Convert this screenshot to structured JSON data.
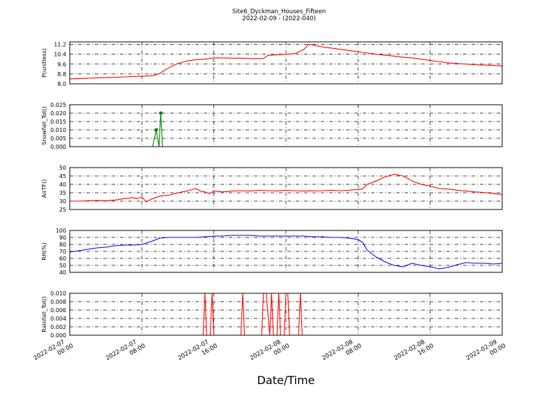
{
  "title_line1": "Site6_Dyckman_Houses_Fifteen",
  "title_line2": "2022-02-09 - (2022-040)",
  "xlabel": "Date/Time",
  "x_ticks": [
    {
      "t": 0,
      "line1": "2022-02-07",
      "line2": "00:00"
    },
    {
      "t": 8,
      "line1": "2022-02-07",
      "line2": "08:00"
    },
    {
      "t": 16,
      "line1": "2022-02-07",
      "line2": "16:00"
    },
    {
      "t": 24,
      "line1": "2022-02-08",
      "line2": "00:00"
    },
    {
      "t": 32,
      "line1": "2022-02-08",
      "line2": "08:00"
    },
    {
      "t": 40,
      "line1": "2022-02-08",
      "line2": "16:00"
    },
    {
      "t": 48,
      "line1": "2022-02-09",
      "line2": "00:00"
    }
  ],
  "chart_data": [
    {
      "type": "line",
      "ylabel": "P(unitless)",
      "ylim": [
        8.0,
        11.4
      ],
      "yticks": [
        "8.0",
        "8.8",
        "9.6",
        "10.4",
        "11.2"
      ],
      "ytick_values": [
        8.0,
        8.8,
        9.6,
        10.4,
        11.2
      ],
      "grid": true,
      "series": [
        {
          "color": "#ff0000",
          "marker": false,
          "x": [
            0,
            1,
            2,
            3,
            4,
            5,
            6,
            7,
            8,
            9,
            9.5,
            10,
            11,
            12,
            13,
            14,
            15,
            16,
            17,
            18,
            19,
            20,
            21,
            21.5,
            22,
            23,
            24,
            25,
            26,
            26.5,
            27,
            28,
            29,
            30,
            31,
            32,
            33,
            34,
            35,
            36,
            37,
            38,
            39,
            40,
            41,
            42,
            43,
            44,
            45,
            46,
            47,
            48
          ],
          "y": [
            8.4,
            8.42,
            8.45,
            8.48,
            8.5,
            8.53,
            8.56,
            8.6,
            8.62,
            8.65,
            8.7,
            8.85,
            9.3,
            9.65,
            9.85,
            9.95,
            10.0,
            10.1,
            10.1,
            10.08,
            10.08,
            10.05,
            10.05,
            10.05,
            10.3,
            10.35,
            10.4,
            10.45,
            10.8,
            11.2,
            11.15,
            11.0,
            10.9,
            10.8,
            10.7,
            10.6,
            10.5,
            10.4,
            10.32,
            10.25,
            10.15,
            10.1,
            10.0,
            9.9,
            9.8,
            9.7,
            9.65,
            9.6,
            9.55,
            9.52,
            9.5,
            9.45
          ]
        }
      ]
    },
    {
      "type": "line",
      "ylabel": "Snowfall_Tot()",
      "ylim": [
        0.0,
        0.025
      ],
      "yticks": [
        "0.000",
        "0.005",
        "0.010",
        "0.015",
        "0.020",
        "0.025"
      ],
      "ytick_values": [
        0.0,
        0.005,
        0.01,
        0.015,
        0.02,
        0.025
      ],
      "grid": true,
      "series": [
        {
          "color": "#008000",
          "marker": true,
          "x": [
            0,
            9.2,
            9.6,
            9.9,
            10.1,
            10.3,
            48
          ],
          "y": [
            0,
            0,
            0.01,
            0,
            0.02,
            0,
            0
          ]
        }
      ]
    },
    {
      "type": "line",
      "ylabel": "AirTF()",
      "ylim": [
        25,
        50
      ],
      "yticks": [
        "25",
        "30",
        "35",
        "40",
        "45",
        "50"
      ],
      "ytick_values": [
        25,
        30,
        35,
        40,
        45,
        50
      ],
      "grid": true,
      "series": [
        {
          "color": "#ff0000",
          "marker": false,
          "x": [
            0,
            1,
            2,
            3,
            4,
            5,
            6,
            7,
            7.5,
            8,
            8.5,
            9,
            10,
            11,
            12,
            13,
            14,
            14.5,
            15,
            15.5,
            16,
            17,
            18,
            19,
            20,
            21,
            22,
            23,
            24,
            25,
            26,
            27,
            28,
            29,
            30,
            31,
            32,
            32.5,
            33,
            34,
            35,
            36,
            37,
            38,
            39,
            40,
            41,
            42,
            43,
            44,
            45,
            46,
            47,
            48
          ],
          "y": [
            30,
            30,
            30.2,
            30.4,
            30.2,
            30.6,
            31.5,
            32,
            31.5,
            32.5,
            29.5,
            31,
            33,
            33.5,
            35,
            36,
            37.5,
            36,
            35.5,
            34.5,
            36,
            35.5,
            36,
            36.2,
            36,
            36.5,
            36.2,
            36,
            36.5,
            36.2,
            36,
            36.1,
            36.2,
            36.5,
            36.2,
            36.5,
            37,
            37.2,
            40,
            42,
            44.5,
            46,
            45,
            42,
            40,
            39,
            37.5,
            37.2,
            36.5,
            36,
            35.5,
            35.2,
            34.5,
            34
          ]
        }
      ]
    },
    {
      "type": "line",
      "ylabel": "RH(%)",
      "ylim": [
        40,
        100
      ],
      "yticks": [
        "40",
        "50",
        "60",
        "70",
        "80",
        "90",
        "100"
      ],
      "ytick_values": [
        40,
        50,
        60,
        70,
        80,
        90,
        100
      ],
      "grid": true,
      "series": [
        {
          "color": "#0000ff",
          "marker": false,
          "x": [
            0,
            1,
            2,
            3,
            4,
            5,
            6,
            7,
            8,
            9,
            10,
            11,
            12,
            13,
            14,
            15,
            16,
            17,
            18,
            19,
            20,
            21,
            22,
            23,
            24,
            25,
            26,
            27,
            28,
            29,
            30,
            31,
            32,
            32.5,
            33,
            34,
            35,
            36,
            37,
            38,
            39,
            40,
            41,
            42,
            43,
            44,
            45,
            46,
            47,
            48
          ],
          "y": [
            69,
            71,
            73,
            75,
            76,
            78,
            79,
            79,
            80,
            84,
            89,
            90,
            90,
            90,
            90,
            91,
            92,
            92,
            93,
            93,
            93,
            92,
            92,
            92,
            92,
            92,
            92,
            91,
            91,
            90,
            90,
            89,
            87,
            83,
            72,
            62,
            55,
            50,
            48,
            53,
            50,
            48,
            45,
            47,
            51,
            54,
            53,
            53,
            52,
            53
          ]
        }
      ]
    },
    {
      "type": "line",
      "ylabel": "Rainfall_Tot()",
      "ylim": [
        0.0,
        0.01
      ],
      "yticks": [
        "0.000",
        "0.002",
        "0.004",
        "0.006",
        "0.008",
        "0.010"
      ],
      "ytick_values": [
        0.0,
        0.002,
        0.004,
        0.006,
        0.008,
        0.01
      ],
      "grid": true,
      "series": [
        {
          "color": "#ff0000",
          "marker": false,
          "x": [
            0,
            14.8,
            15.0,
            15.2,
            15.6,
            15.8,
            16.0,
            19.0,
            19.2,
            19.4,
            21.3,
            21.5,
            21.8,
            22.2,
            22.4,
            22.6,
            23.0,
            23.2,
            23.4,
            23.8,
            24.0,
            24.2,
            24.4,
            25.4,
            25.6,
            25.8,
            48
          ],
          "y": [
            0,
            0,
            0.01,
            0,
            0,
            0.01,
            0,
            0,
            0.01,
            0,
            0,
            0.01,
            0.01,
            0,
            0.01,
            0,
            0,
            0.01,
            0,
            0,
            0.01,
            0.01,
            0,
            0,
            0.01,
            0,
            0
          ]
        }
      ]
    }
  ]
}
